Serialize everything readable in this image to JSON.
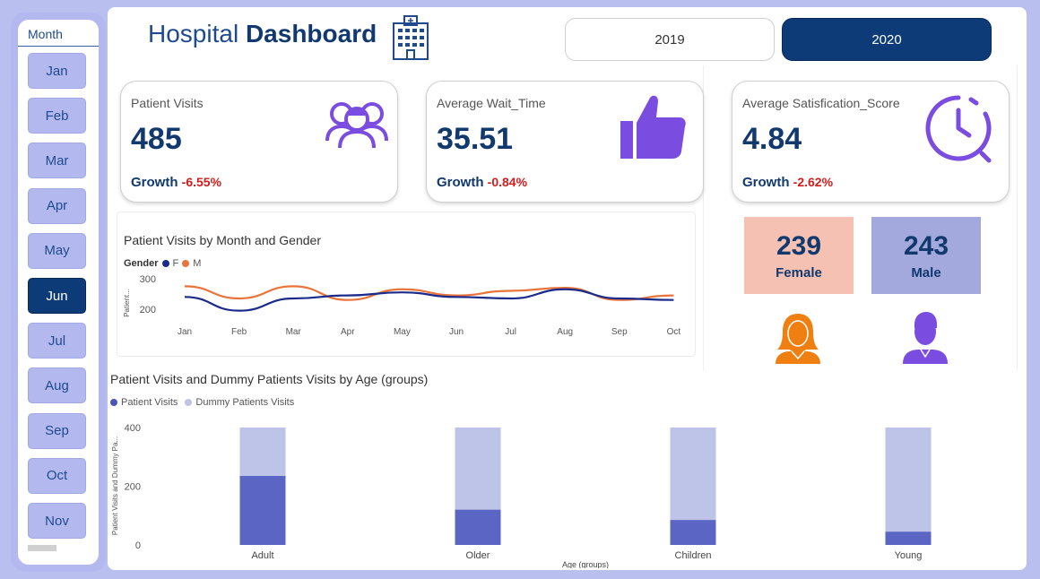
{
  "sidebar": {
    "header": "Month",
    "months": [
      "Jan",
      "Feb",
      "Mar",
      "Apr",
      "May",
      "Jun",
      "Jul",
      "Aug",
      "Sep",
      "Oct",
      "Nov"
    ],
    "selected": "Jun"
  },
  "header": {
    "title_light": "Hospital",
    "title_bold": "Dashboard",
    "icon": "hospital-building-icon"
  },
  "years": {
    "options": [
      "2019",
      "2020"
    ],
    "selected": "2020"
  },
  "kpis": [
    {
      "label": "Patient Visits",
      "value": "485",
      "growth_label": "Growth",
      "growth": "-6.55%",
      "icon": "patients-group-icon"
    },
    {
      "label": "Average Wait_Time",
      "value": "35.51",
      "growth_label": "Growth",
      "growth": "-0.84%",
      "icon": "thumbs-up-icon"
    },
    {
      "label": "Average Satisfication_Score",
      "value": "4.84",
      "growth_label": "Growth",
      "growth": "-2.62%",
      "icon": "clock-icon"
    }
  ],
  "gender": {
    "female": {
      "value": "239",
      "label": "Female",
      "color": "#f4c1b2",
      "icon_color": "#f07f12"
    },
    "male": {
      "value": "243",
      "label": "Male",
      "color": "#a3a9dd",
      "icon_color": "#7a4ce0"
    }
  },
  "colors": {
    "accent": "#0c3b78",
    "negative": "#d01c1c",
    "icon_purple": "#7a4ce0"
  },
  "chart_data": [
    {
      "type": "line",
      "title": "Patient Visits by Month and Gender",
      "legend_title": "Gender",
      "ylabel": "Patient...",
      "xlabel": "",
      "categories": [
        "Jan",
        "Feb",
        "Mar",
        "Apr",
        "May",
        "Jun",
        "Jul",
        "Aug",
        "Sep",
        "Oct"
      ],
      "yticks": [
        200,
        300
      ],
      "ylim": [
        150,
        320
      ],
      "series": [
        {
          "name": "F",
          "color": "#1a2b8c",
          "values": [
            240,
            195,
            235,
            245,
            255,
            240,
            235,
            265,
            235,
            230
          ]
        },
        {
          "name": "M",
          "color": "#e8743b",
          "values": [
            275,
            235,
            275,
            230,
            265,
            245,
            260,
            270,
            230,
            245
          ]
        }
      ],
      "legend_position": "top-left"
    },
    {
      "type": "bar",
      "title": "Patient Visits and Dummy Patients Visits by Age (groups)",
      "xlabel": "Age (groups)",
      "ylabel": "Patient Visits and Dummy Pa...",
      "categories": [
        "Adult",
        "Older",
        "Children",
        "Young"
      ],
      "yticks": [
        0,
        200,
        400
      ],
      "ylim": [
        0,
        400
      ],
      "series": [
        {
          "name": "Patient Visits",
          "color": "#5b65c4",
          "values": [
            235,
            120,
            85,
            45
          ]
        },
        {
          "name": "Dummy Patients Visits",
          "color": "#bec3e8",
          "values": [
            400,
            400,
            400,
            400
          ]
        }
      ],
      "stacked": "overlay",
      "legend_position": "top-left"
    }
  ]
}
